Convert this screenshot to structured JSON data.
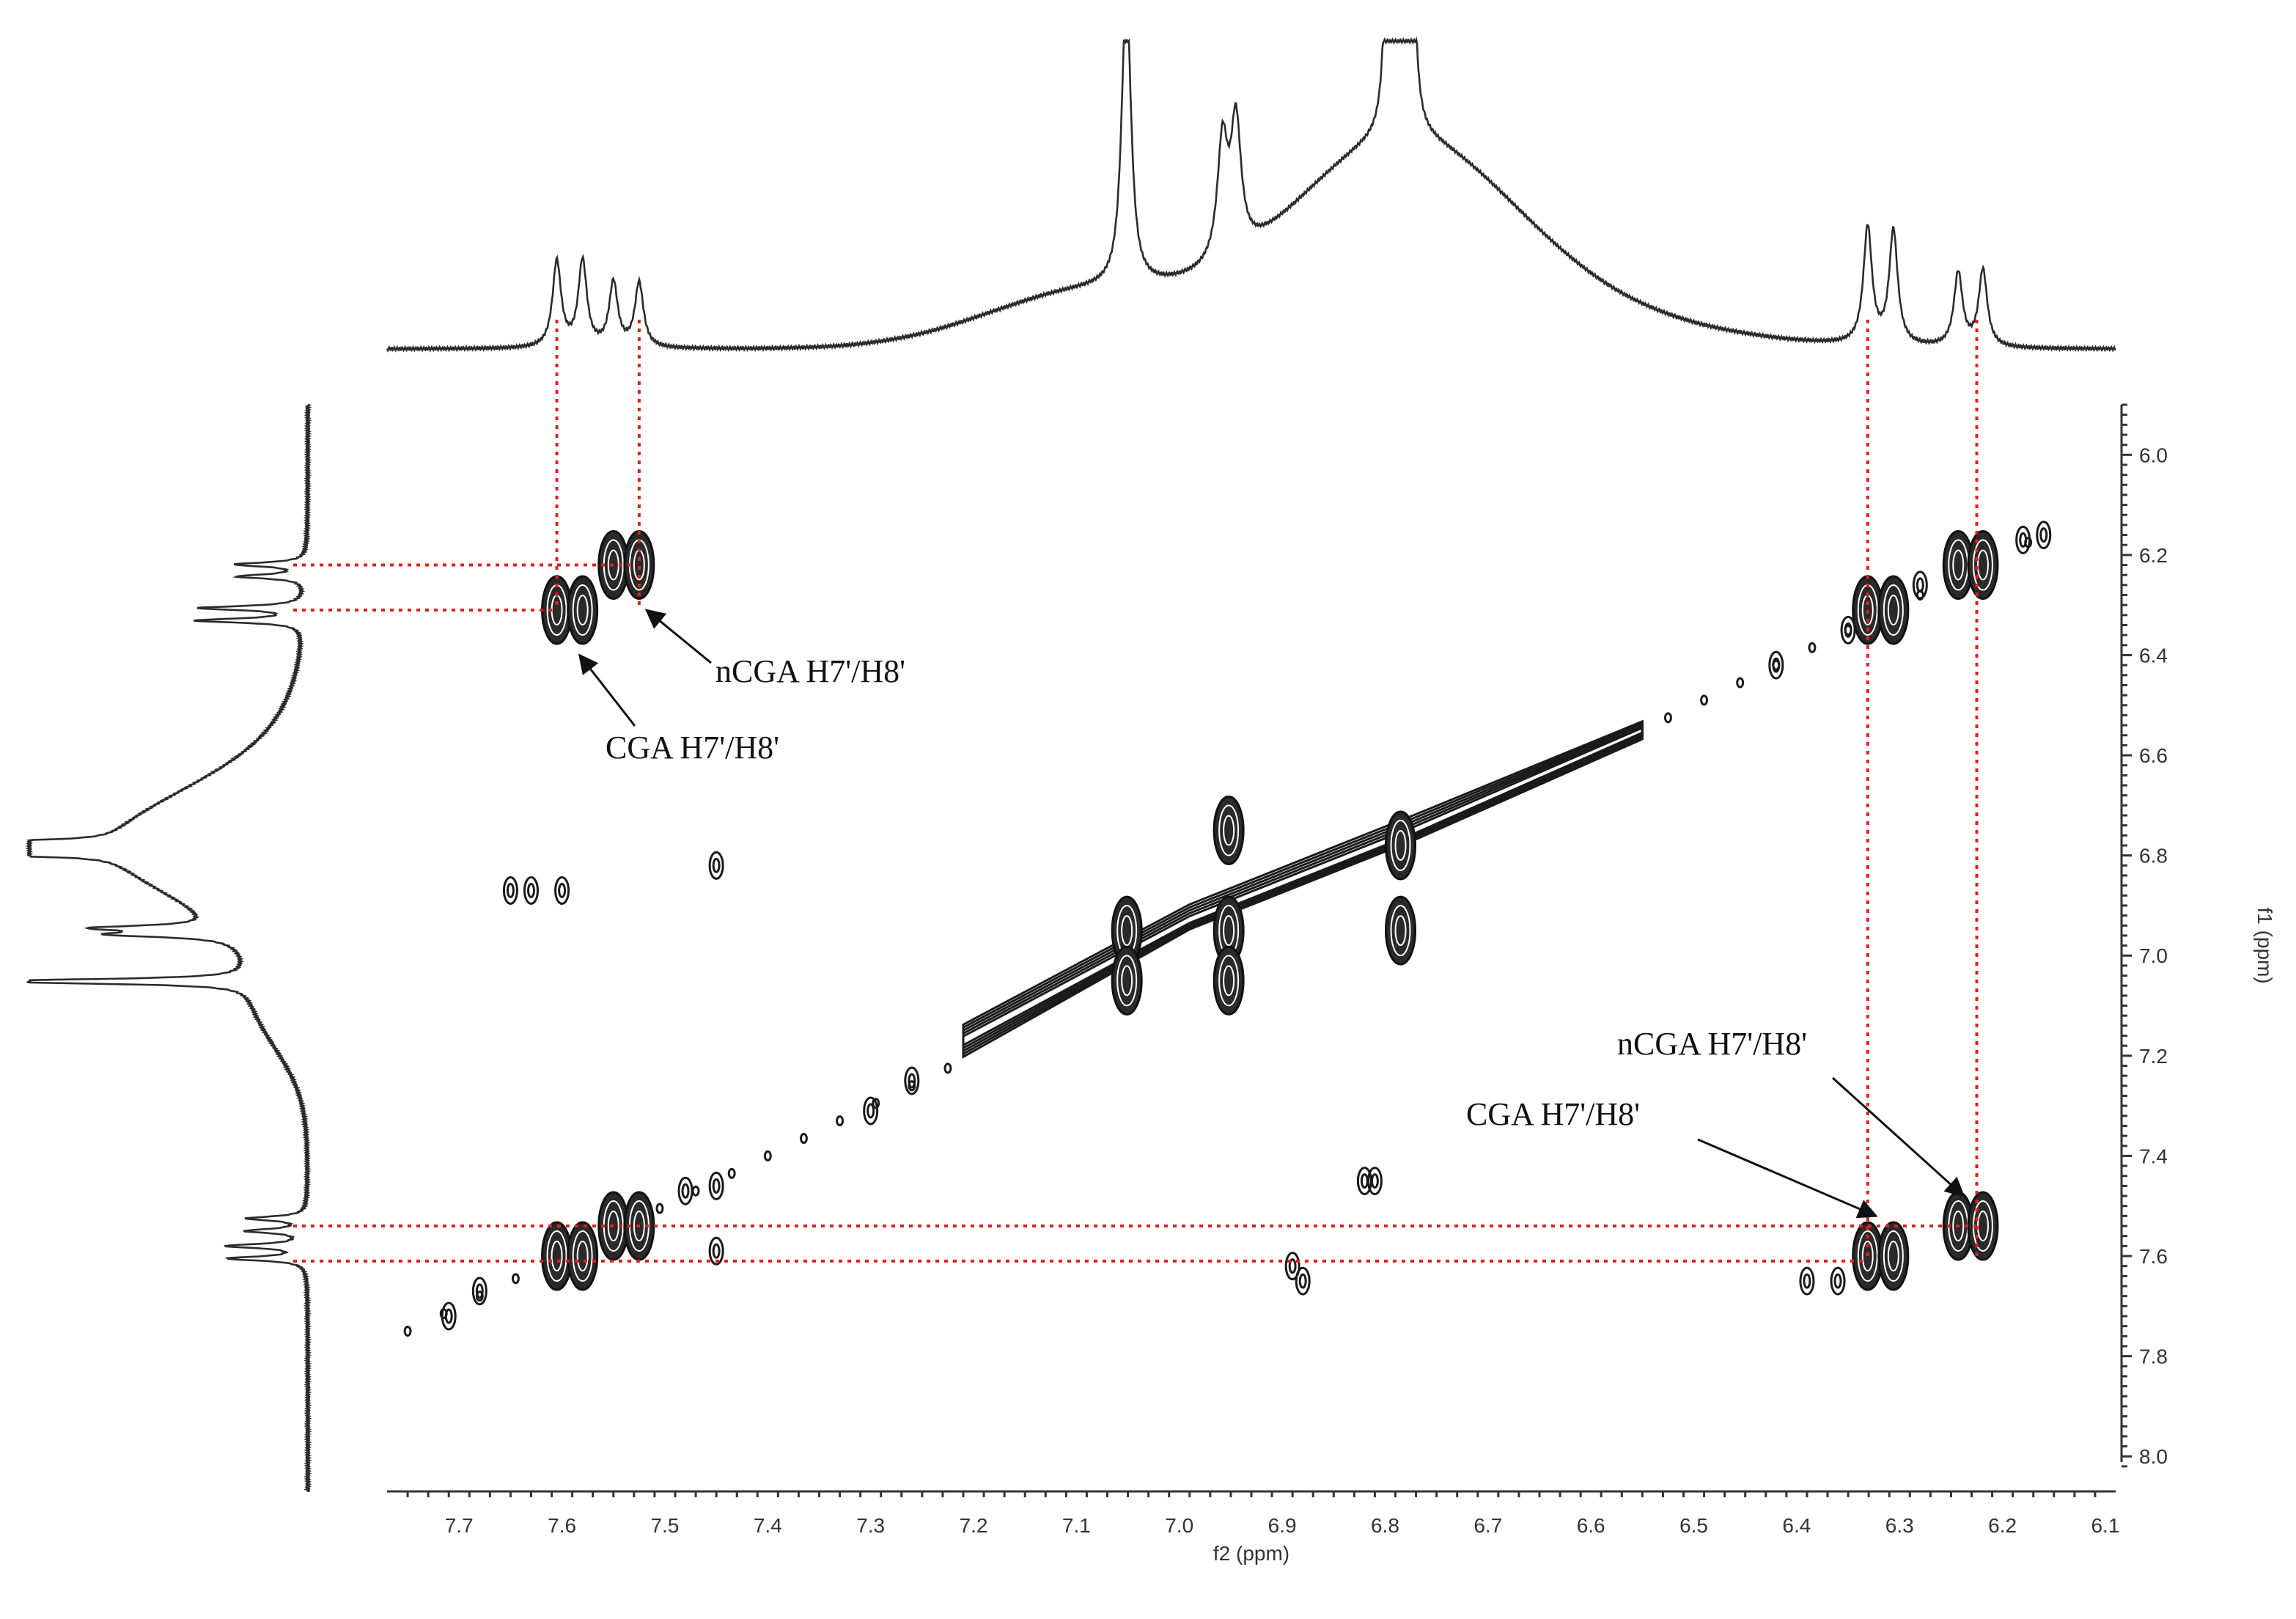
{
  "chart_data": {
    "type": "2D NMR contour spectrum",
    "f2_axis": {
      "label": "f2 (ppm)",
      "range": [
        7.77,
        6.09
      ],
      "ticks": [
        7.7,
        7.6,
        7.5,
        7.4,
        7.3,
        7.2,
        7.1,
        7.0,
        6.9,
        6.8,
        6.7,
        6.6,
        6.5,
        6.4,
        6.3,
        6.2,
        6.1
      ],
      "tick_labels": [
        "7.7",
        "7.6",
        "7.5",
        "7.4",
        "7.3",
        "7.2",
        "7.1",
        "7.0",
        "6.9",
        "6.8",
        "6.7",
        "6.6",
        "6.5",
        "6.4",
        "6.3",
        "6.2",
        "6.1"
      ]
    },
    "f1_axis": {
      "label": "f1 (ppm)",
      "range": [
        5.9,
        8.07
      ],
      "ticks": [
        6.0,
        6.2,
        6.4,
        6.6,
        6.8,
        7.0,
        7.2,
        7.4,
        7.6,
        7.8,
        8.0
      ],
      "tick_labels": [
        "6.0",
        "6.2",
        "6.4",
        "6.6",
        "6.8",
        "7.0",
        "7.2",
        "7.4",
        "7.6",
        "7.8",
        "8.0"
      ]
    },
    "projection_1d": {
      "peaks": [
        {
          "ppm": 7.605,
          "height": 0.28,
          "width": 0.005
        },
        {
          "ppm": 7.58,
          "height": 0.28,
          "width": 0.005
        },
        {
          "ppm": 7.55,
          "height": 0.21,
          "width": 0.005
        },
        {
          "ppm": 7.525,
          "height": 0.21,
          "width": 0.005
        },
        {
          "ppm": 7.053,
          "height": 0.5,
          "width": 0.005
        },
        {
          "ppm": 7.05,
          "height": 0.5,
          "width": 0.005
        },
        {
          "ppm": 6.958,
          "height": 0.38,
          "width": 0.006
        },
        {
          "ppm": 6.945,
          "height": 0.42,
          "width": 0.006
        },
        {
          "ppm": 6.79,
          "height": 0.7,
          "width": 0.0035
        },
        {
          "ppm": 6.782,
          "height": 0.7,
          "width": 0.0035
        },
        {
          "ppm": 6.774,
          "height": 0.7,
          "width": 0.0035
        },
        {
          "ppm": 6.798,
          "height": 0.6,
          "width": 0.0035
        },
        {
          "ppm": 6.331,
          "height": 0.38,
          "width": 0.005
        },
        {
          "ppm": 6.306,
          "height": 0.37,
          "width": 0.005
        },
        {
          "ppm": 6.243,
          "height": 0.24,
          "width": 0.005
        },
        {
          "ppm": 6.219,
          "height": 0.25,
          "width": 0.005
        }
      ],
      "broad_humps": [
        {
          "ppm": 6.79,
          "height": 0.6,
          "width": 0.11
        },
        {
          "ppm": 7.09,
          "height": 0.18,
          "width": 0.1
        },
        {
          "ppm": 6.66,
          "height": 0.12,
          "width": 0.15
        }
      ]
    },
    "cross_peaks": [
      {
        "f2": 7.605,
        "f1": 6.31
      },
      {
        "f2": 7.58,
        "f1": 6.31
      },
      {
        "f2": 7.55,
        "f1": 6.22
      },
      {
        "f2": 7.525,
        "f1": 6.22
      },
      {
        "f2": 6.331,
        "f1": 7.6
      },
      {
        "f2": 6.306,
        "f1": 7.6
      },
      {
        "f2": 6.243,
        "f1": 7.54
      },
      {
        "f2": 6.219,
        "f1": 7.54
      },
      {
        "f2": 6.331,
        "f1": 6.31
      },
      {
        "f2": 6.306,
        "f1": 6.31
      },
      {
        "f2": 6.243,
        "f1": 6.22
      },
      {
        "f2": 6.219,
        "f1": 6.22
      },
      {
        "f2": 7.605,
        "f1": 7.6
      },
      {
        "f2": 7.58,
        "f1": 7.6
      },
      {
        "f2": 7.55,
        "f1": 7.54
      },
      {
        "f2": 7.525,
        "f1": 7.54
      },
      {
        "f2": 7.051,
        "f1": 6.95
      },
      {
        "f2": 7.051,
        "f1": 7.05
      },
      {
        "f2": 6.952,
        "f1": 6.75
      },
      {
        "f2": 6.952,
        "f1": 6.95
      },
      {
        "f2": 6.952,
        "f1": 7.05
      },
      {
        "f2": 6.785,
        "f1": 6.78
      },
      {
        "f2": 6.785,
        "f1": 6.95
      }
    ],
    "minor_peaks": [
      {
        "f2": 7.45,
        "f1": 7.46
      },
      {
        "f2": 7.48,
        "f1": 7.47
      },
      {
        "f2": 7.6,
        "f1": 6.87
      },
      {
        "f2": 7.65,
        "f1": 6.87
      },
      {
        "f2": 7.63,
        "f1": 6.87
      },
      {
        "f2": 7.45,
        "f1": 6.82
      },
      {
        "f2": 7.26,
        "f1": 7.25
      },
      {
        "f2": 7.3,
        "f1": 7.31
      },
      {
        "f2": 6.82,
        "f1": 7.45
      },
      {
        "f2": 6.81,
        "f1": 7.45
      },
      {
        "f2": 6.89,
        "f1": 7.62
      },
      {
        "f2": 6.88,
        "f1": 7.65
      },
      {
        "f2": 7.68,
        "f1": 7.67
      },
      {
        "f2": 7.71,
        "f1": 7.72
      },
      {
        "f2": 6.42,
        "f1": 6.42
      },
      {
        "f2": 6.39,
        "f1": 7.65
      },
      {
        "f2": 6.36,
        "f1": 7.65
      },
      {
        "f2": 6.16,
        "f1": 6.16
      },
      {
        "f2": 6.18,
        "f1": 6.17
      },
      {
        "f2": 7.45,
        "f1": 7.59
      },
      {
        "f2": 6.28,
        "f1": 6.26
      },
      {
        "f2": 6.35,
        "f1": 6.35
      }
    ],
    "annotations": [
      {
        "text": "nCGA H7'/H8'",
        "target_f2": 7.525,
        "target_f1": 6.31
      },
      {
        "text": "CGA H7'/H8'",
        "target_f2": 7.59,
        "target_f1": 6.4
      },
      {
        "text": "nCGA H7'/H8'",
        "target_f2": 6.235,
        "target_f1": 7.48
      },
      {
        "text": "CGA H7'/H8'",
        "target_f2": 6.32,
        "target_f1": 7.52
      }
    ],
    "guides_f2": [
      7.605,
      7.525,
      6.331,
      6.225
    ],
    "guides_f1": [
      6.22,
      6.31,
      7.54,
      7.61
    ],
    "colors": {
      "contours": "#1a1a1a",
      "guides": "#e0201e",
      "spectrum": "#2b2b2b"
    }
  }
}
